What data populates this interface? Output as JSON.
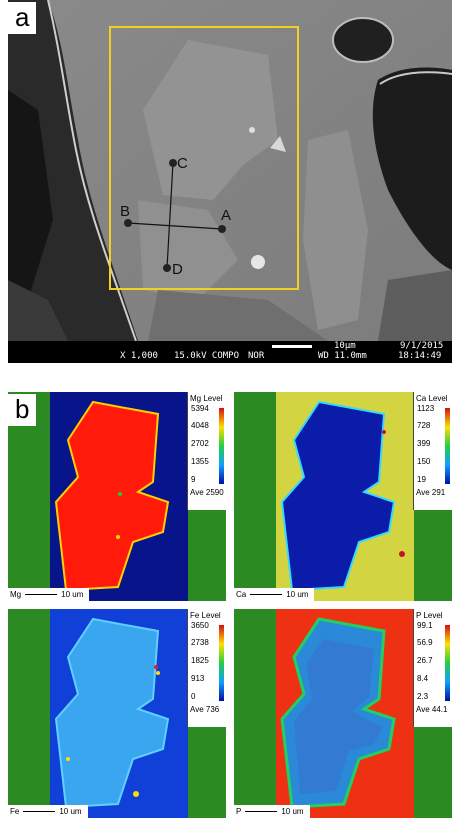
{
  "panel_a": {
    "label": "a",
    "points": {
      "a": "A",
      "b": "B",
      "c": "C",
      "d": "D"
    },
    "sem_info": {
      "magnification": "X 1,000",
      "voltage_mode": "15.0kV COMPO",
      "mode": "NOR",
      "scale": "10µm",
      "date": "9/1/2015",
      "working_distance": "WD 11.0mm",
      "time": "18:14:49"
    }
  },
  "panel_b": {
    "label": "b",
    "maps": [
      {
        "element": "Mg",
        "level_title": "Mg Level",
        "ticks": [
          "5394",
          "4048",
          "2702",
          "1355",
          "9"
        ],
        "average": "Ave 2590",
        "scale_label": "10 um"
      },
      {
        "element": "Ca",
        "level_title": "Ca Level",
        "ticks": [
          "1123",
          "728",
          "399",
          "150",
          "19"
        ],
        "average": "Ave 291",
        "scale_label": "10 um"
      },
      {
        "element": "Fe",
        "level_title": "Fe Level",
        "ticks": [
          "3650",
          "2738",
          "1825",
          "913",
          "0"
        ],
        "average": "Ave 736",
        "scale_label": "10 um"
      },
      {
        "element": "P",
        "level_title": "P Level",
        "ticks": [
          "99.1",
          "56.9",
          "26.7",
          "8.4",
          "2.3"
        ],
        "average": "Ave 44.1",
        "scale_label": "10 um"
      }
    ]
  },
  "colors": {
    "background_green": "#2b8a22",
    "roi_yellow": "#f0d020"
  }
}
